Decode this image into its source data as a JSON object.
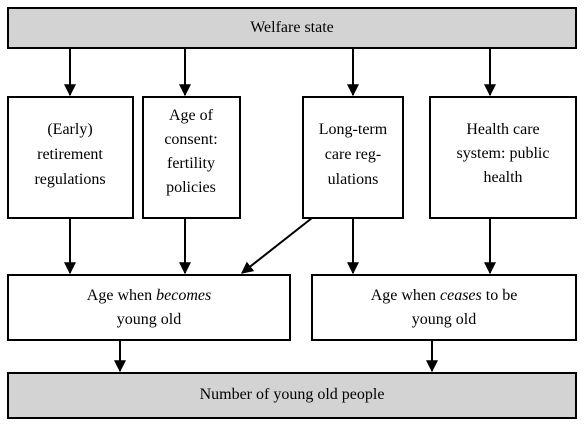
{
  "nodes": [
    {
      "lines": [
        [
          {
            "text": "Welfare state"
          }
        ]
      ]
    },
    {
      "lines": [
        [
          {
            "text": "(Early)"
          }
        ],
        [
          {
            "text": "retirement"
          }
        ],
        [
          {
            "text": "regulations"
          }
        ]
      ]
    },
    {
      "lines": [
        [
          {
            "text": "Age of"
          }
        ],
        [
          {
            "text": "consent:"
          }
        ],
        [
          {
            "text": "fertility"
          }
        ],
        [
          {
            "text": "policies"
          }
        ]
      ]
    },
    {
      "lines": [
        [
          {
            "text": "Long-term"
          }
        ],
        [
          {
            "text": "care reg-"
          }
        ],
        [
          {
            "text": "ulations"
          }
        ]
      ]
    },
    {
      "lines": [
        [
          {
            "text": "Health care"
          }
        ],
        [
          {
            "text": "system: public"
          }
        ],
        [
          {
            "text": "health"
          }
        ]
      ]
    },
    {
      "lines": [
        [
          {
            "text": "Age when "
          },
          {
            "text": "becomes",
            "italic": true
          }
        ],
        [
          {
            "text": "young old"
          }
        ]
      ]
    },
    {
      "lines": [
        [
          {
            "text": "Age when "
          },
          {
            "text": "ceases",
            "italic": true
          },
          {
            "text": " to be"
          }
        ],
        [
          {
            "text": "young old"
          }
        ]
      ]
    },
    {
      "lines": [
        [
          {
            "text": "Number of young old people"
          }
        ]
      ]
    }
  ]
}
